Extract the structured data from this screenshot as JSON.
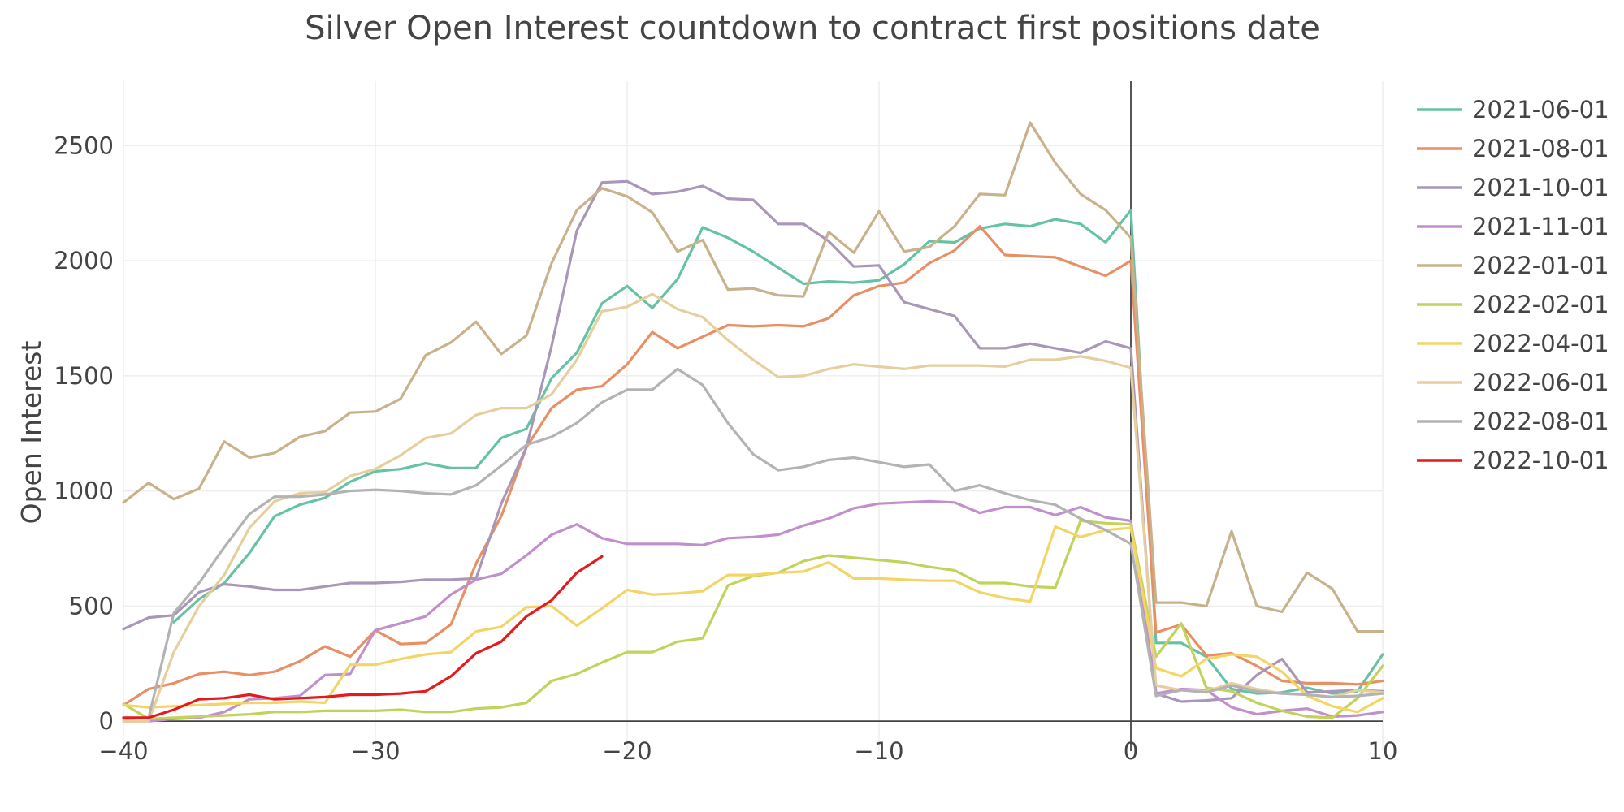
{
  "chart_data": {
    "type": "line",
    "title": "Silver Open Interest countdown to contract first positions date",
    "xlabel": "",
    "ylabel": "Open Interest",
    "xlim": [
      -40,
      10
    ],
    "ylim": [
      -130,
      2780
    ],
    "x_ticks": [
      -40,
      -30,
      -20,
      -10,
      0,
      10
    ],
    "x_tick_labels": [
      "−40",
      "−30",
      "−20",
      "−10",
      "0",
      "10"
    ],
    "y_ticks": [
      0,
      500,
      1000,
      1500,
      2000,
      2500
    ],
    "grid": true,
    "legend_position": "right",
    "zero_lines": true,
    "x": [
      -40,
      -39,
      -38,
      -37,
      -36,
      -35,
      -34,
      -33,
      -32,
      -31,
      -30,
      -29,
      -28,
      -27,
      -26,
      -25,
      -24,
      -23,
      -22,
      -21,
      -20,
      -19,
      -18,
      -17,
      -16,
      -15,
      -14,
      -13,
      -12,
      -11,
      -10,
      -9,
      -8,
      -7,
      -6,
      -5,
      -4,
      -3,
      -2,
      -1,
      0,
      1,
      2,
      3,
      4,
      5,
      6,
      7,
      8,
      9,
      10
    ],
    "series": [
      {
        "name": "2021-06-01",
        "color": "#66c2a5",
        "values": [
          null,
          null,
          430,
          530,
          600,
          730,
          890,
          940,
          970,
          1040,
          1085,
          1095,
          1120,
          1100,
          1100,
          1230,
          1270,
          1490,
          1600,
          1815,
          1890,
          1795,
          1920,
          2145,
          2100,
          2040,
          1970,
          1900,
          1910,
          1905,
          1915,
          1985,
          2085,
          2080,
          2140,
          2160,
          2150,
          2180,
          2160,
          2080,
          2220,
          340,
          340,
          280,
          140,
          120,
          125,
          145,
          120,
          130,
          290
        ]
      },
      {
        "name": "2021-08-01",
        "color": "#e78f65",
        "values": [
          70,
          140,
          165,
          205,
          215,
          200,
          215,
          260,
          325,
          280,
          395,
          335,
          340,
          420,
          685,
          890,
          1190,
          1360,
          1440,
          1455,
          1550,
          1690,
          1620,
          1670,
          1720,
          1715,
          1720,
          1715,
          1750,
          1850,
          1890,
          1905,
          1990,
          2045,
          2150,
          2025,
          2020,
          2015,
          1975,
          1935,
          2000,
          385,
          420,
          285,
          295,
          240,
          175,
          165,
          165,
          160,
          175
        ]
      },
      {
        "name": "2021-10-01",
        "color": "#a997b8",
        "values": [
          400,
          450,
          460,
          560,
          595,
          585,
          570,
          570,
          585,
          600,
          600,
          605,
          615,
          615,
          620,
          945,
          1190,
          1630,
          2130,
          2340,
          2345,
          2290,
          2300,
          2325,
          2270,
          2265,
          2160,
          2160,
          2085,
          1975,
          1980,
          1820,
          1790,
          1760,
          1620,
          1620,
          1640,
          1620,
          1600,
          1650,
          1620,
          120,
          85,
          90,
          100,
          200,
          270,
          125,
          130,
          135,
          130
        ]
      },
      {
        "name": "2021-11-01",
        "color": "#c18fcc",
        "values": [
          0,
          0,
          10,
          15,
          40,
          95,
          100,
          110,
          200,
          205,
          395,
          425,
          455,
          550,
          615,
          640,
          720,
          810,
          855,
          795,
          770,
          770,
          770,
          765,
          795,
          800,
          810,
          850,
          880,
          925,
          945,
          950,
          955,
          950,
          905,
          930,
          930,
          895,
          930,
          885,
          870,
          120,
          140,
          135,
          60,
          30,
          45,
          55,
          20,
          25,
          40
        ]
      },
      {
        "name": "2022-01-01",
        "color": "#c8b28c",
        "values": [
          950,
          1035,
          965,
          1010,
          1215,
          1145,
          1165,
          1235,
          1260,
          1340,
          1345,
          1400,
          1590,
          1645,
          1735,
          1595,
          1675,
          1990,
          2220,
          2315,
          2280,
          2210,
          2040,
          2090,
          1875,
          1880,
          1850,
          1845,
          2125,
          2035,
          2215,
          2040,
          2060,
          2150,
          2290,
          2285,
          2600,
          2425,
          2290,
          2220,
          2100,
          515,
          515,
          500,
          825,
          500,
          475,
          645,
          575,
          390,
          390
        ]
      },
      {
        "name": "2022-02-01",
        "color": "#c1d35a",
        "values": [
          75,
          10,
          15,
          20,
          25,
          30,
          40,
          40,
          45,
          45,
          45,
          50,
          40,
          40,
          55,
          60,
          80,
          175,
          205,
          255,
          300,
          300,
          345,
          360,
          590,
          630,
          645,
          695,
          720,
          710,
          700,
          690,
          670,
          655,
          600,
          600,
          585,
          580,
          870,
          860,
          855,
          280,
          425,
          145,
          130,
          80,
          45,
          20,
          15,
          100,
          240
        ]
      },
      {
        "name": "2022-04-01",
        "color": "#f3d566",
        "values": [
          70,
          60,
          65,
          70,
          75,
          80,
          80,
          85,
          80,
          245,
          245,
          270,
          290,
          300,
          390,
          410,
          495,
          500,
          415,
          490,
          570,
          550,
          555,
          565,
          635,
          635,
          645,
          650,
          690,
          620,
          620,
          615,
          610,
          610,
          560,
          535,
          520,
          845,
          800,
          830,
          840,
          230,
          195,
          270,
          290,
          280,
          215,
          110,
          65,
          40,
          100
        ]
      },
      {
        "name": "2022-06-01",
        "color": "#e6cf9f",
        "values": [
          0,
          0,
          300,
          500,
          635,
          840,
          955,
          990,
          995,
          1065,
          1095,
          1155,
          1230,
          1250,
          1330,
          1360,
          1360,
          1420,
          1570,
          1780,
          1800,
          1855,
          1790,
          1755,
          1655,
          1570,
          1495,
          1500,
          1530,
          1550,
          1540,
          1530,
          1545,
          1545,
          1545,
          1540,
          1570,
          1570,
          1585,
          1565,
          1535,
          155,
          135,
          130,
          165,
          140,
          120,
          115,
          105,
          135,
          125
        ]
      },
      {
        "name": "2022-08-01",
        "color": "#b3b3b3",
        "values": [
          10,
          15,
          470,
          600,
          755,
          900,
          975,
          975,
          985,
          1000,
          1005,
          1000,
          990,
          985,
          1025,
          1110,
          1200,
          1235,
          1295,
          1385,
          1440,
          1440,
          1530,
          1460,
          1295,
          1160,
          1090,
          1105,
          1135,
          1145,
          1125,
          1105,
          1115,
          1000,
          1025,
          990,
          960,
          940,
          880,
          830,
          770,
          110,
          135,
          125,
          155,
          130,
          120,
          115,
          105,
          110,
          120
        ]
      },
      {
        "name": "2022-10-01",
        "color": "#e41a1c",
        "values": [
          15,
          15,
          50,
          95,
          100,
          115,
          95,
          100,
          105,
          115,
          115,
          120,
          130,
          195,
          295,
          345,
          455,
          525,
          645,
          715,
          null,
          null,
          null,
          null,
          null,
          null,
          null,
          null,
          null,
          null,
          null,
          null,
          null,
          null,
          null,
          null,
          null,
          null,
          null,
          null,
          null,
          null,
          null,
          null,
          null,
          null,
          null,
          null,
          null,
          null,
          null
        ]
      }
    ]
  }
}
